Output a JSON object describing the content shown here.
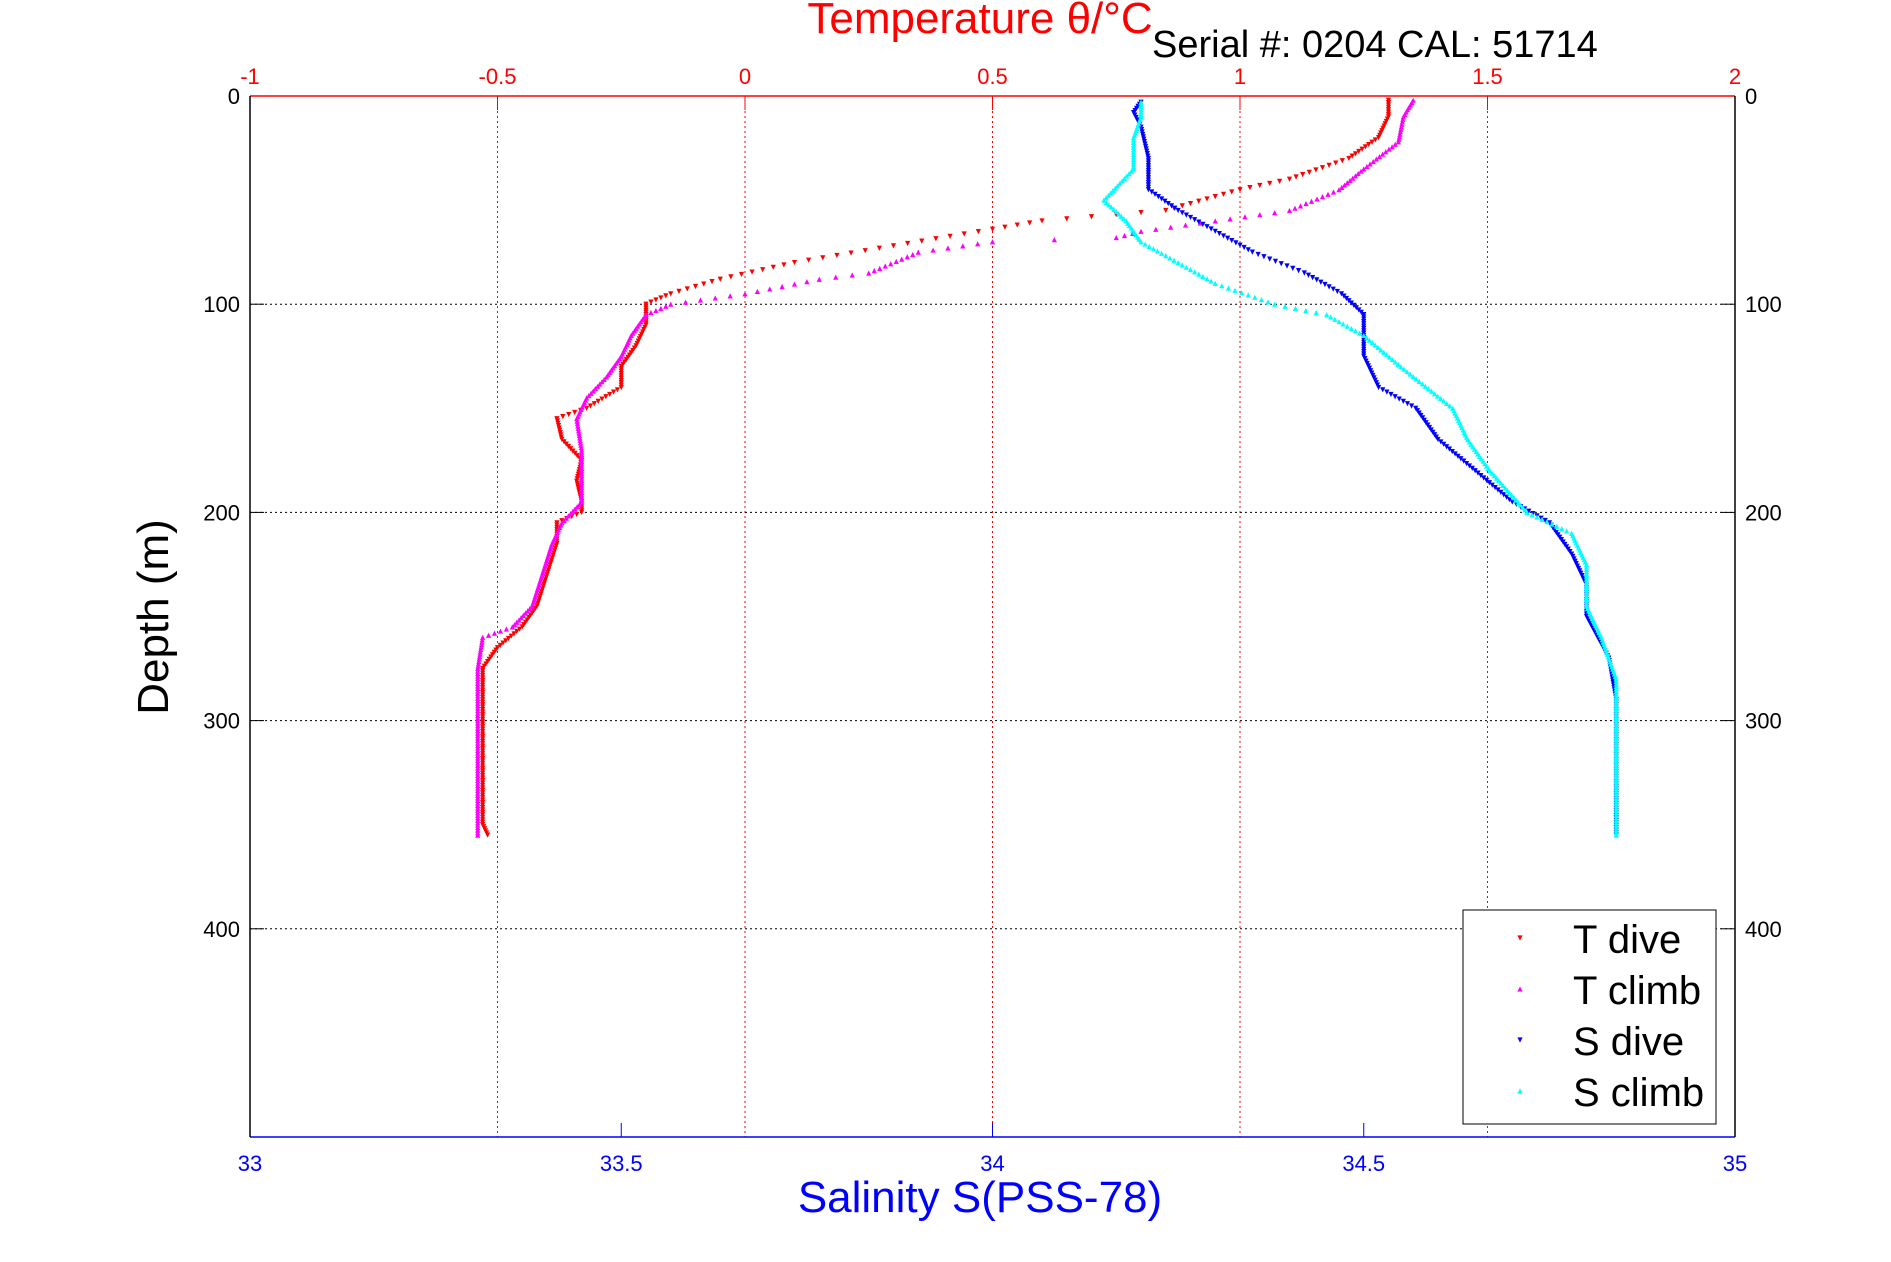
{
  "header": {
    "top_title": "Temperature θ/°C",
    "serial": "Serial #: 0204  CAL: 51714"
  },
  "chart_data": {
    "type": "scatter",
    "xlabel_bottom": "Salinity S(PSS-78)",
    "xlabel_top": "Temperature θ/°C",
    "ylabel": "Depth (m)",
    "bottom_axis": {
      "range": [
        33,
        35
      ],
      "ticks": [
        "33",
        "33.5",
        "34",
        "34.5",
        "35"
      ]
    },
    "top_axis": {
      "range": [
        -1,
        2
      ],
      "ticks": [
        "-1",
        "-0.5",
        "0",
        "0.5",
        "1",
        "1.5",
        "2"
      ]
    },
    "y_axis": {
      "range": [
        0,
        500
      ],
      "reversed": true,
      "ticks": [
        "0",
        "100",
        "200",
        "300",
        "400"
      ]
    },
    "grid": true,
    "legend": {
      "placement": "bottom-right",
      "entries": [
        "T dive",
        "T climb",
        "S dive",
        "S climb"
      ]
    },
    "colors": {
      "T dive": "#ff0000",
      "T climb": "#ff00ff",
      "S dive": "#0000ff",
      "S climb": "#00ffff",
      "top_axis": "#ff0000",
      "bottom_axis": "#0000ff"
    },
    "series": [
      {
        "name": "T dive",
        "axis": "temperature",
        "points": [
          [
            1.3,
            2
          ],
          [
            1.3,
            10
          ],
          [
            1.28,
            20
          ],
          [
            1.22,
            30
          ],
          [
            1.1,
            40
          ],
          [
            1,
            45
          ],
          [
            0.85,
            55
          ],
          [
            0.6,
            60
          ],
          [
            0.5,
            64
          ],
          [
            0.3,
            72
          ],
          [
            0.1,
            80
          ],
          [
            -0.05,
            88
          ],
          [
            -0.15,
            95
          ],
          [
            -0.2,
            100
          ],
          [
            -0.2,
            105
          ],
          [
            -0.2,
            110
          ],
          [
            -0.22,
            120
          ],
          [
            -0.25,
            130
          ],
          [
            -0.25,
            140
          ],
          [
            -0.32,
            150
          ],
          [
            -0.38,
            155
          ],
          [
            -0.37,
            165
          ],
          [
            -0.33,
            175
          ],
          [
            -0.34,
            185
          ],
          [
            -0.33,
            195
          ],
          [
            -0.33,
            200
          ],
          [
            -0.38,
            205
          ],
          [
            -0.38,
            215
          ],
          [
            -0.4,
            230
          ],
          [
            -0.42,
            245
          ],
          [
            -0.45,
            255
          ],
          [
            -0.5,
            265
          ],
          [
            -0.53,
            275
          ],
          [
            -0.53,
            290
          ],
          [
            -0.53,
            310
          ],
          [
            -0.53,
            330
          ],
          [
            -0.53,
            350
          ],
          [
            -0.52,
            355
          ]
        ]
      },
      {
        "name": "T climb",
        "axis": "temperature",
        "points": [
          [
            1.35,
            2
          ],
          [
            1.33,
            10
          ],
          [
            1.32,
            22
          ],
          [
            1.25,
            35
          ],
          [
            1.2,
            45
          ],
          [
            1.1,
            55
          ],
          [
            0.95,
            60
          ],
          [
            0.8,
            65
          ],
          [
            0.75,
            68
          ],
          [
            0.5,
            70
          ],
          [
            0.35,
            75
          ],
          [
            0.25,
            85
          ],
          [
            0.15,
            88
          ],
          [
            0,
            95
          ],
          [
            -0.15,
            100
          ],
          [
            -0.2,
            105
          ],
          [
            -0.23,
            115
          ],
          [
            -0.25,
            125
          ],
          [
            -0.28,
            135
          ],
          [
            -0.32,
            145
          ],
          [
            -0.34,
            155
          ],
          [
            -0.33,
            170
          ],
          [
            -0.33,
            180
          ],
          [
            -0.33,
            195
          ],
          [
            -0.37,
            205
          ],
          [
            -0.39,
            215
          ],
          [
            -0.41,
            230
          ],
          [
            -0.43,
            245
          ],
          [
            -0.47,
            255
          ],
          [
            -0.53,
            260
          ],
          [
            -0.54,
            275
          ],
          [
            -0.54,
            300
          ],
          [
            -0.54,
            330
          ],
          [
            -0.54,
            355
          ]
        ]
      },
      {
        "name": "S dive",
        "axis": "salinity",
        "points": [
          [
            34.2,
            3
          ],
          [
            34.19,
            8
          ],
          [
            34.2,
            15
          ],
          [
            34.21,
            30
          ],
          [
            34.21,
            45
          ],
          [
            34.25,
            55
          ],
          [
            34.3,
            65
          ],
          [
            34.35,
            75
          ],
          [
            34.42,
            85
          ],
          [
            34.47,
            95
          ],
          [
            34.5,
            105
          ],
          [
            34.5,
            115
          ],
          [
            34.5,
            125
          ],
          [
            34.52,
            140
          ],
          [
            34.57,
            150
          ],
          [
            34.6,
            165
          ],
          [
            34.65,
            180
          ],
          [
            34.7,
            195
          ],
          [
            34.75,
            205
          ],
          [
            34.78,
            220
          ],
          [
            34.8,
            235
          ],
          [
            34.8,
            250
          ],
          [
            34.83,
            270
          ],
          [
            34.84,
            290
          ],
          [
            34.84,
            320
          ],
          [
            34.84,
            355
          ]
        ]
      },
      {
        "name": "S climb",
        "axis": "salinity",
        "points": [
          [
            34.2,
            3
          ],
          [
            34.2,
            10
          ],
          [
            34.19,
            20
          ],
          [
            34.19,
            35
          ],
          [
            34.15,
            50
          ],
          [
            34.18,
            60
          ],
          [
            34.2,
            70
          ],
          [
            34.25,
            80
          ],
          [
            34.3,
            90
          ],
          [
            34.38,
            100
          ],
          [
            34.45,
            105
          ],
          [
            34.5,
            115
          ],
          [
            34.55,
            130
          ],
          [
            34.62,
            150
          ],
          [
            34.64,
            165
          ],
          [
            34.67,
            180
          ],
          [
            34.72,
            200
          ],
          [
            34.78,
            210
          ],
          [
            34.8,
            225
          ],
          [
            34.8,
            245
          ],
          [
            34.82,
            260
          ],
          [
            34.84,
            280
          ],
          [
            34.84,
            310
          ],
          [
            34.84,
            355
          ]
        ]
      }
    ]
  }
}
